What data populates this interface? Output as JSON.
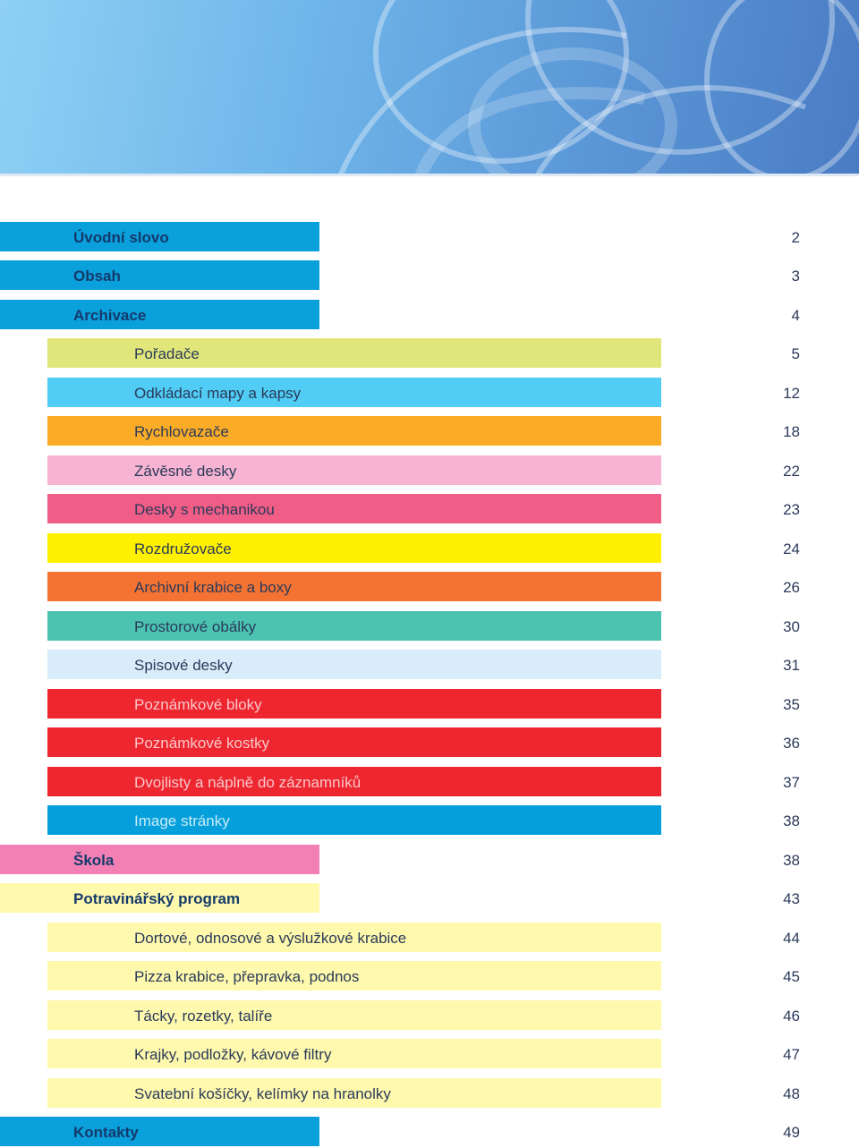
{
  "colors": {
    "main_blue": "#0aa0dc",
    "lime": "#e1e67a",
    "sky": "#50ccf5",
    "orange": "#fbac27",
    "pink_light": "#f7b3d2",
    "pink": "#f05d86",
    "yellow": "#fff100",
    "orange_dark": "#f47232",
    "teal": "#4bc3b0",
    "pale_blue": "#d8ecfa",
    "red": "#ee2630",
    "blue": "#05a0dc",
    "pink_school": "#f280b5",
    "cream": "#fff9ad"
  },
  "toc": [
    {
      "label": "Úvodní slovo",
      "page": "2"
    },
    {
      "label": "Obsah",
      "page": "3"
    },
    {
      "label": "Archivace",
      "page": "4"
    },
    {
      "label": "Pořadače",
      "page": "5"
    },
    {
      "label": "Odkládací mapy a kapsy",
      "page": "12"
    },
    {
      "label": "Rychlovazače",
      "page": "18"
    },
    {
      "label": "Závěsné desky",
      "page": "22"
    },
    {
      "label": "Desky s mechanikou",
      "page": "23"
    },
    {
      "label": "Rozdružovače",
      "page": "24"
    },
    {
      "label": "Archivní krabice a boxy",
      "page": "26"
    },
    {
      "label": "Prostorové obálky",
      "page": "30"
    },
    {
      "label": "Spisové desky",
      "page": "31"
    },
    {
      "label": "Poznámkové bloky",
      "page": "35"
    },
    {
      "label": "Poznámkové kostky",
      "page": "36"
    },
    {
      "label": "Dvojlisty a náplně do záznamníků",
      "page": "37"
    },
    {
      "label": "Image stránky",
      "page": "38"
    },
    {
      "label": "Škola",
      "page": "38"
    },
    {
      "label": "Potravinářský program",
      "page": "43"
    },
    {
      "label": "Dortové, odnosové a výslužkové krabice",
      "page": "44"
    },
    {
      "label": "Pizza krabice, přepravka, podnos",
      "page": "45"
    },
    {
      "label": "Tácky, rozetky, talíře",
      "page": "46"
    },
    {
      "label": "Krajky, podložky, kávové filtry",
      "page": "47"
    },
    {
      "label": "Svatební košíčky, kelímky na hranolky",
      "page": "48"
    },
    {
      "label": "Kontakty",
      "page": "49"
    }
  ]
}
